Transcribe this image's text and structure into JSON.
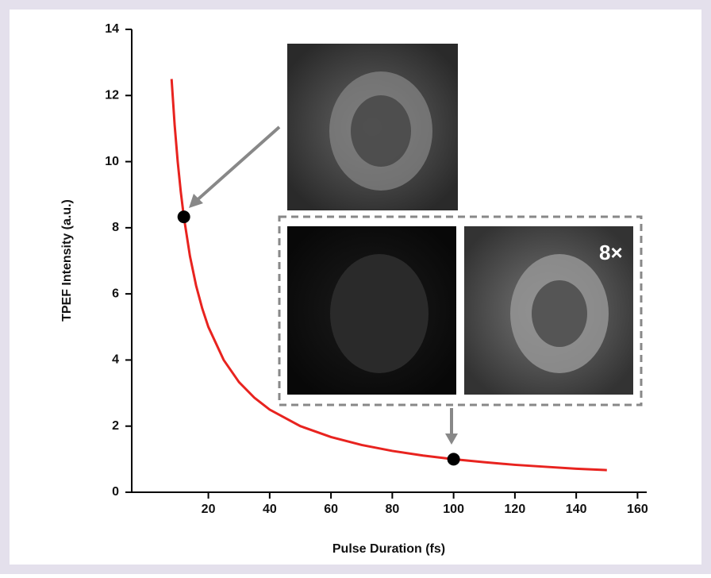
{
  "chart_data": {
    "type": "line",
    "x_label": "Pulse Duration (fs)",
    "y_label": "TPEF Intensity (a.u.)",
    "x": [
      8,
      9,
      10,
      11,
      12,
      14,
      16,
      18,
      20,
      25,
      30,
      35,
      40,
      50,
      60,
      70,
      80,
      90,
      100,
      110,
      120,
      130,
      140,
      150
    ],
    "series": [
      {
        "color": "#e8231f",
        "values": [
          12.5,
          11.11,
          10,
          9.09,
          8.33,
          7.14,
          6.25,
          5.56,
          5,
          4,
          3.33,
          2.86,
          2.5,
          2,
          1.67,
          1.43,
          1.25,
          1.11,
          1,
          0.91,
          0.83,
          0.77,
          0.71,
          0.67
        ]
      }
    ],
    "points": {
      "x": [
        12,
        100
      ],
      "values": [
        8.33,
        1
      ],
      "color": "#000000"
    },
    "annotation": "8×",
    "xlim": [
      -5,
      163
    ],
    "xticks": [
      20,
      40,
      60,
      80,
      100,
      120,
      140,
      160
    ],
    "ylim": [
      0,
      14
    ],
    "yticks": [
      0,
      2,
      4,
      6,
      8,
      10,
      12,
      14
    ]
  }
}
